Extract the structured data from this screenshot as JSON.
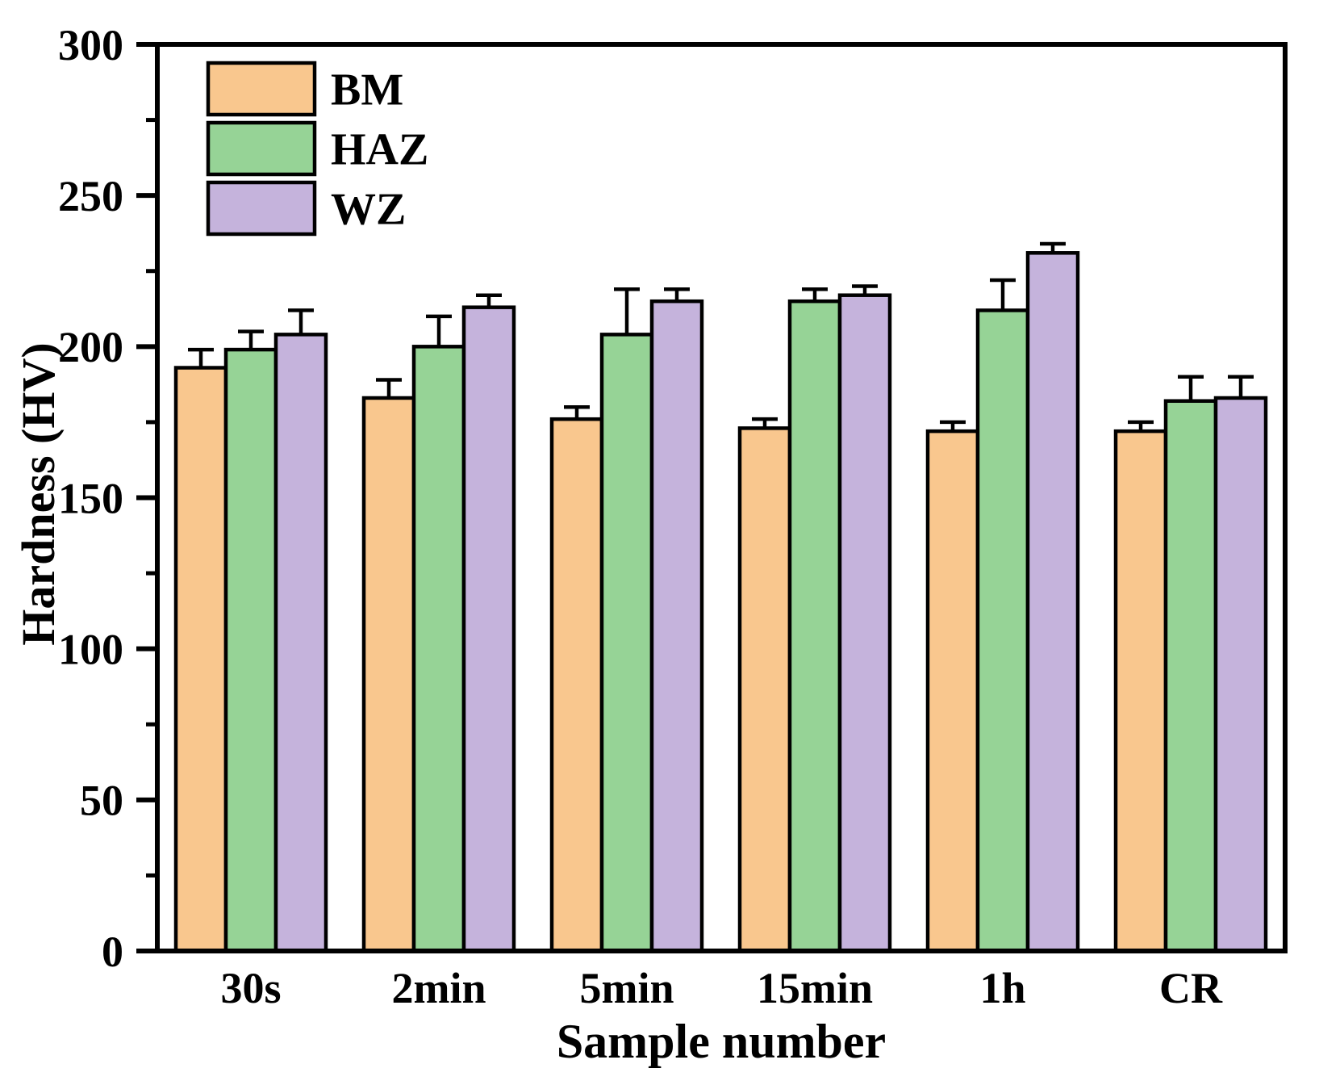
{
  "figure": {
    "background": "#ffffff",
    "frame_color": "#000000",
    "text_color": "#000000"
  },
  "chart_data": {
    "type": "bar",
    "title": "",
    "xlabel": "Sample number",
    "ylabel": "Hardness (HV)",
    "categories": [
      "30s",
      "2min",
      "5min",
      "15min",
      "1h",
      "CR"
    ],
    "series": [
      {
        "name": "BM",
        "color": "#F9C78E",
        "values": [
          193,
          183,
          176,
          173,
          172,
          172
        ],
        "errors": [
          6,
          6,
          4,
          3,
          3,
          3
        ]
      },
      {
        "name": "HAZ",
        "color": "#96D396",
        "values": [
          199,
          200,
          204,
          215,
          212,
          182
        ],
        "errors": [
          6,
          10,
          15,
          4,
          10,
          8
        ]
      },
      {
        "name": "WZ",
        "color": "#C5B3DC",
        "values": [
          204,
          213,
          215,
          217,
          231,
          183
        ],
        "errors": [
          8,
          4,
          4,
          3,
          3,
          7
        ]
      }
    ],
    "ylim": [
      0,
      300
    ],
    "y_major_ticks": [
      0,
      50,
      100,
      150,
      200,
      250,
      300
    ],
    "y_minor_ticks": [
      25,
      75,
      125,
      175,
      225,
      275
    ],
    "grid": false,
    "legend_position": "top-left",
    "error_bars": "upper",
    "bar_border_color": "#000000"
  }
}
